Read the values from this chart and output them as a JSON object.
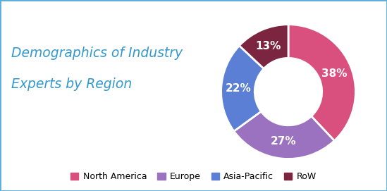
{
  "title_line1": "Demographics of Industry",
  "title_line2": "Experts by Region",
  "title_color": "#3399cc",
  "title_fontsize": 13.5,
  "labels": [
    "North America",
    "Europe",
    "Asia-Pacific",
    "RoW"
  ],
  "values": [
    38,
    27,
    22,
    13
  ],
  "colors": [
    "#d94f7e",
    "#9b72bf",
    "#5b7fd4",
    "#7b2540"
  ],
  "pct_labels": [
    "38%",
    "27%",
    "22%",
    "13%"
  ],
  "legend_labels": [
    "North America",
    "Europe",
    "Asia-Pacific",
    "RoW"
  ],
  "background_color": "#ffffff",
  "border_color": "#5baddc"
}
